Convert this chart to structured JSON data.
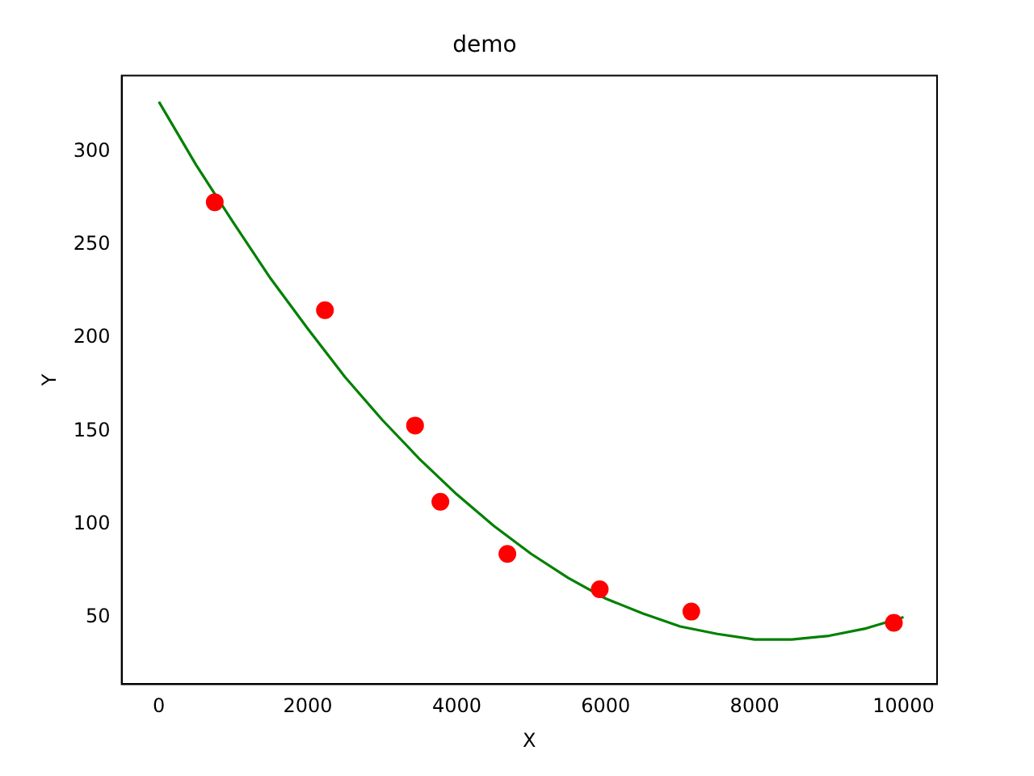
{
  "chart_data": {
    "type": "scatter",
    "title": "demo",
    "xlabel": "X",
    "ylabel": "Y",
    "xlim": [
      -500,
      10450
    ],
    "ylim": [
      14,
      341
    ],
    "xticks": [
      0,
      2000,
      4000,
      6000,
      8000,
      10000
    ],
    "yticks": [
      50,
      100,
      150,
      200,
      250,
      300
    ],
    "grid": false,
    "legend": false,
    "series": [
      {
        "type": "scatter",
        "color": "#ff0000",
        "marker": "circle",
        "x": [
          750,
          2230,
          3440,
          3780,
          4680,
          5920,
          7150,
          9870
        ],
        "values": [
          273,
          215,
          153,
          112,
          84,
          65,
          53,
          47
        ]
      },
      {
        "type": "line",
        "color": "#008000",
        "marker": "none",
        "line_style": "solid",
        "x": [
          0,
          500,
          1000,
          1500,
          2000,
          2500,
          3000,
          3500,
          4000,
          4500,
          5000,
          5500,
          6000,
          6500,
          7000,
          7500,
          8000,
          8500,
          9000,
          9500,
          10000
        ],
        "values": [
          327,
          293,
          262,
          232,
          205,
          179,
          156,
          135,
          116,
          99,
          84,
          71,
          60,
          52,
          45,
          41,
          38,
          38,
          40,
          44,
          50
        ]
      }
    ]
  }
}
